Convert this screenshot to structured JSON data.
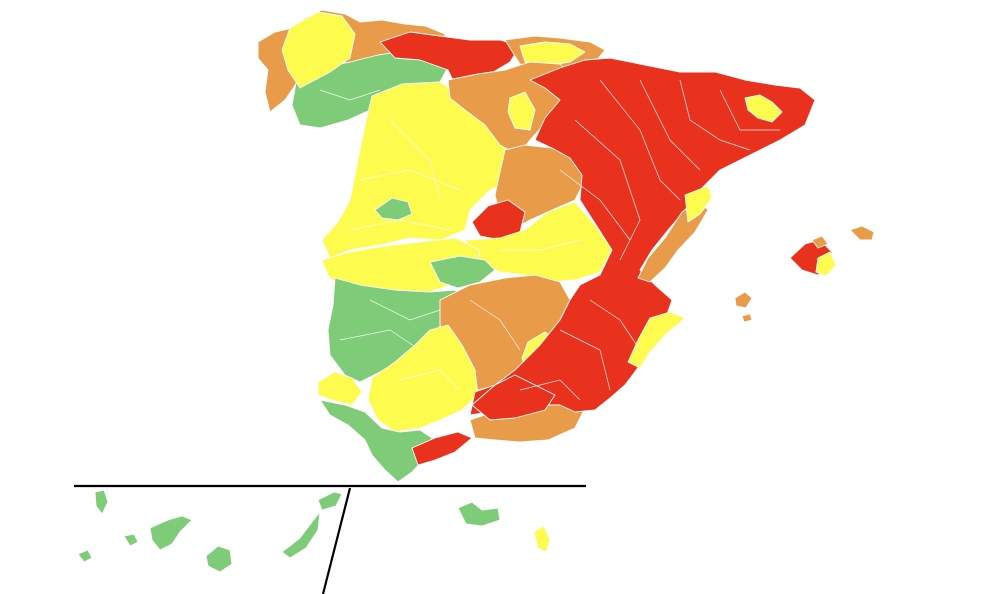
{
  "map": {
    "type": "choropleth",
    "subject": "Spain",
    "legend": [],
    "palette": {
      "red": "#e8321e",
      "orange": "#e89b48",
      "yellow": "#fdfb4e",
      "green": "#7ecb78"
    },
    "regions_by_color": {
      "red": [
        "north-cantabrian-strip",
        "aragon-catalonia-valencia-block",
        "madrid-area",
        "murcia-andalusia-east",
        "malaga-strip",
        "mallorca-west"
      ],
      "orange": [
        "galicia-north-coast",
        "cantabria-coast",
        "burgos-palencia",
        "soria-guadalajara",
        "castilla-la-mancha-south",
        "castellon-coast",
        "almeria-coast",
        "menorca",
        "ibiza",
        "formentera"
      ],
      "yellow": [
        "asturias-west",
        "castilla-leon-main",
        "extremadura-north",
        "toledo-cuenca",
        "cordoba-jaen",
        "huelva-west",
        "catalonia-north-pocket",
        "valencia-coast",
        "alicante-coast",
        "basque-coast",
        "mallorca-east",
        "fuerteventura"
      ],
      "green": [
        "galicia-south",
        "leon-east",
        "extremadura-south",
        "sevilla-cadiz",
        "tenerife",
        "gran-canaria",
        "la-palma",
        "la-gomera",
        "el-hierro",
        "lanzarote",
        "orense-pocket"
      ]
    }
  }
}
